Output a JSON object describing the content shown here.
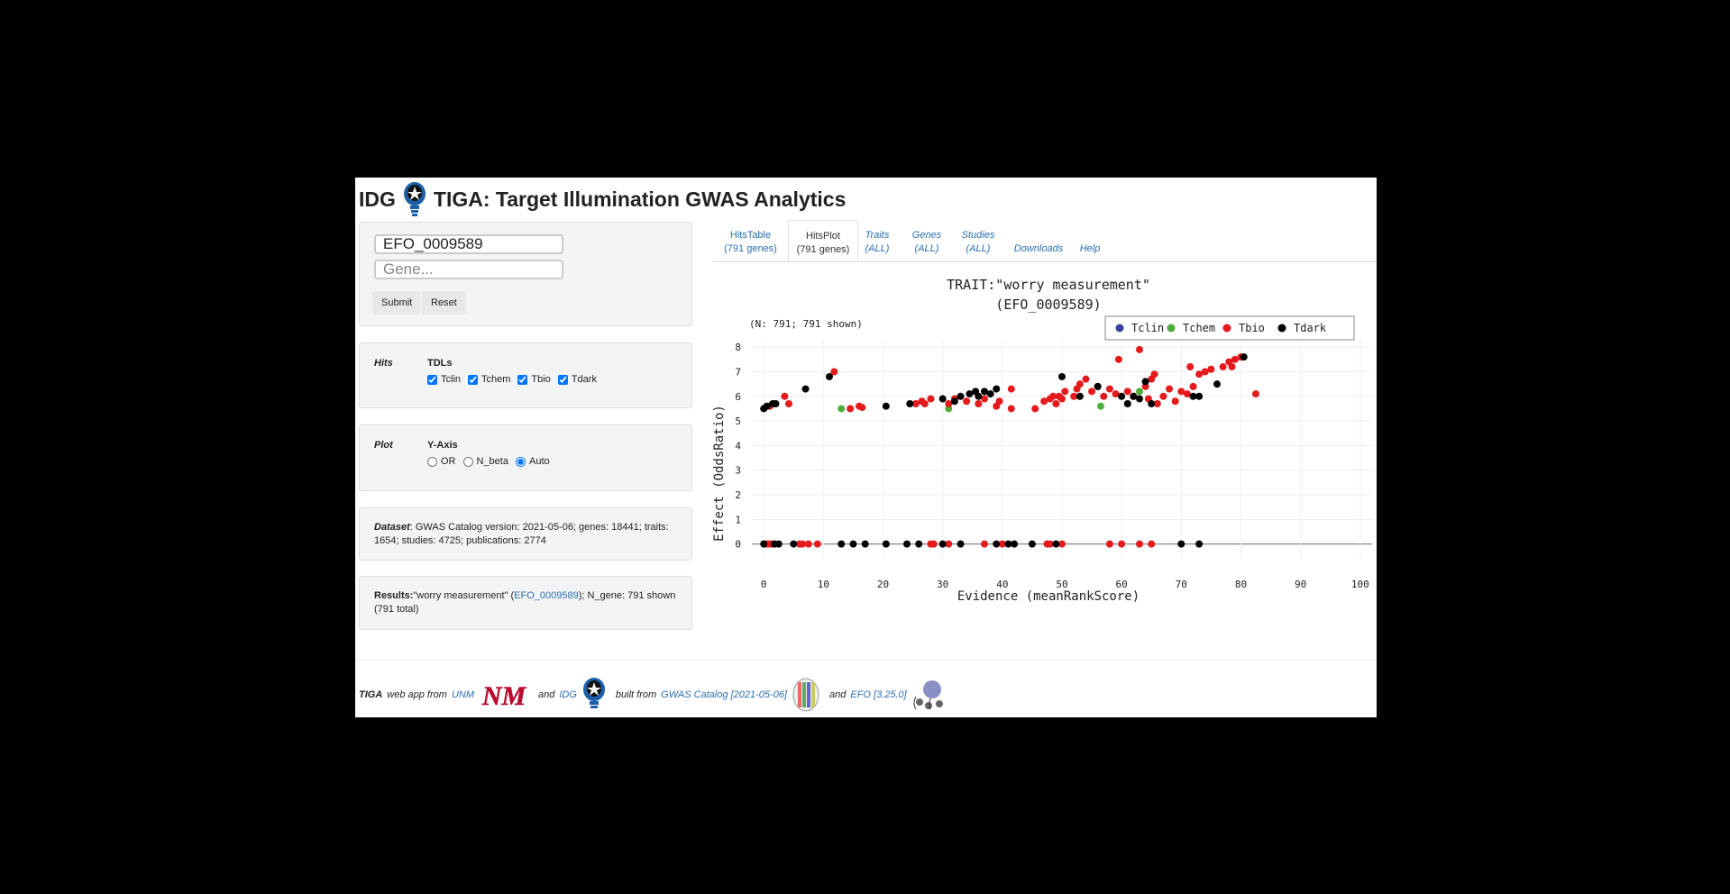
{
  "header": {
    "prefix": "IDG",
    "title": "TIGA: Target Illumination GWAS Analytics"
  },
  "search": {
    "trait_value": "EFO_0009589",
    "gene_placeholder": "Gene...",
    "submit_label": "Submit",
    "reset_label": "Reset"
  },
  "hits_panel": {
    "label": "Hits",
    "heading": "TDLs",
    "options": [
      {
        "label": "Tclin",
        "checked": true
      },
      {
        "label": "Tchem",
        "checked": true
      },
      {
        "label": "Tbio",
        "checked": true
      },
      {
        "label": "Tdark",
        "checked": true
      }
    ]
  },
  "plot_panel": {
    "label": "Plot",
    "heading": "Y-Axis",
    "options": [
      {
        "label": "OR",
        "checked": false
      },
      {
        "label": "N_beta",
        "checked": false
      },
      {
        "label": "Auto",
        "checked": true
      }
    ]
  },
  "dataset": {
    "label": "Dataset",
    "text": ": GWAS Catalog version: 2021-05-06; genes: 18441; traits: 1654; studies: 4725; publications: 2774"
  },
  "results": {
    "label": "Results:",
    "text_a": "\"worry measurement\" (",
    "link": "EFO_0009589",
    "text_b": "); N_gene: 791 shown (791 total)"
  },
  "tabs": [
    {
      "line1": "HitsTable",
      "line2": "(791 genes)",
      "active": false,
      "italic": false
    },
    {
      "line1": "HitsPlot",
      "line2": "(791 genes)",
      "active": true,
      "italic": false
    },
    {
      "line1": "Traits",
      "line2": "(ALL)",
      "active": false,
      "italic": true
    },
    {
      "line1": "Genes",
      "line2": "(ALL)",
      "active": false,
      "italic": true
    },
    {
      "line1": "Studies",
      "line2": "(ALL)",
      "active": false,
      "italic": true
    },
    {
      "line1": "Downloads",
      "line2": "",
      "active": false,
      "italic": true
    },
    {
      "line1": "Help",
      "line2": "",
      "active": false,
      "italic": true
    }
  ],
  "footer": {
    "app": "TIGA",
    "text1": "web app from",
    "link1": "UNM",
    "and1": "and",
    "link2": "IDG",
    "text2": "built from",
    "link3": "GWAS Catalog [2021-05-06]",
    "and2": "and",
    "link4": "EFO [3.25.0]",
    "unm_logo_text": "NM"
  },
  "colors": {
    "Tclin": "#3a3f9b",
    "Tchem": "#4fae3a",
    "Tbio": "#e41a1c",
    "Tdark": "#000000",
    "link": "#2a6fb0"
  },
  "chart_data": {
    "type": "scatter",
    "title_line1": "TRAIT:\"worry measurement\"",
    "title_line2": "(EFO_0009589)",
    "subtitle": "(N: 791; 791 shown)",
    "xlabel": "Evidence (meanRankScore)",
    "ylabel": "Effect (OddsRatio)",
    "xlim": [
      -2,
      102
    ],
    "ylim": [
      -0.6,
      8.3
    ],
    "xticks": [
      0,
      10,
      20,
      30,
      40,
      50,
      60,
      70,
      80,
      90,
      100
    ],
    "yticks": [
      0,
      1,
      2,
      3,
      4,
      5,
      6,
      7,
      8
    ],
    "grid": true,
    "legend_position": "top-right",
    "series": [
      {
        "name": "Tclin",
        "color": "#3a3f9b",
        "points": []
      },
      {
        "name": "Tchem",
        "color": "#4fae3a",
        "points": [
          [
            13,
            5.5
          ],
          [
            31,
            5.5
          ],
          [
            56.5,
            5.6
          ],
          [
            63,
            6.2
          ]
        ]
      },
      {
        "name": "Tbio",
        "color": "#e41a1c",
        "points": [
          [
            1,
            5.6
          ],
          [
            3.5,
            6.0
          ],
          [
            4.2,
            5.7
          ],
          [
            11.8,
            7.0
          ],
          [
            14.5,
            5.5
          ],
          [
            16,
            5.6
          ],
          [
            16.5,
            5.55
          ],
          [
            25.5,
            5.7
          ],
          [
            26.5,
            5.8
          ],
          [
            27,
            5.7
          ],
          [
            28,
            5.9
          ],
          [
            31,
            5.7
          ],
          [
            32,
            5.9
          ],
          [
            34,
            5.8
          ],
          [
            36,
            5.7
          ],
          [
            37,
            5.9
          ],
          [
            39,
            5.6
          ],
          [
            39.5,
            5.8
          ],
          [
            41.5,
            6.3
          ],
          [
            41.5,
            5.5
          ],
          [
            45.5,
            5.5
          ],
          [
            47,
            5.8
          ],
          [
            48,
            5.9
          ],
          [
            48.5,
            6.0
          ],
          [
            49,
            5.7
          ],
          [
            49.5,
            6.0
          ],
          [
            50,
            5.9
          ],
          [
            50.5,
            6.2
          ],
          [
            52,
            6.0
          ],
          [
            52.5,
            6.3
          ],
          [
            53,
            6.5
          ],
          [
            54,
            6.7
          ],
          [
            55,
            6.2
          ],
          [
            56,
            6.4
          ],
          [
            57,
            6.0
          ],
          [
            58,
            6.3
          ],
          [
            59,
            6.1
          ],
          [
            59.5,
            7.5
          ],
          [
            61,
            6.2
          ],
          [
            62,
            6.0
          ],
          [
            63,
            7.9
          ],
          [
            64,
            6.4
          ],
          [
            64.5,
            5.9
          ],
          [
            65,
            6.7
          ],
          [
            65.5,
            6.9
          ],
          [
            66,
            5.7
          ],
          [
            67,
            6.0
          ],
          [
            68,
            6.3
          ],
          [
            69,
            5.8
          ],
          [
            70,
            6.2
          ],
          [
            71,
            6.1
          ],
          [
            71.5,
            7.2
          ],
          [
            72,
            6.4
          ],
          [
            73,
            6.9
          ],
          [
            74,
            7.0
          ],
          [
            75,
            7.1
          ],
          [
            77,
            7.2
          ],
          [
            78,
            7.4
          ],
          [
            78.5,
            7.2
          ],
          [
            79,
            7.5
          ],
          [
            80,
            7.6
          ],
          [
            82.5,
            6.1
          ],
          [
            0.5,
            0
          ],
          [
            1,
            0
          ],
          [
            1.5,
            0
          ],
          [
            6,
            0
          ],
          [
            6.5,
            0
          ],
          [
            7.5,
            0
          ],
          [
            9,
            0
          ],
          [
            28,
            0
          ],
          [
            28.5,
            0
          ],
          [
            31,
            0
          ],
          [
            37,
            0
          ],
          [
            40,
            0
          ],
          [
            47.5,
            0
          ],
          [
            48,
            0
          ],
          [
            50,
            0
          ],
          [
            58,
            0
          ],
          [
            60,
            0
          ],
          [
            63,
            0
          ],
          [
            65,
            0
          ]
        ]
      },
      {
        "name": "Tdark",
        "color": "#000000",
        "points": [
          [
            0,
            5.5
          ],
          [
            0.5,
            5.6
          ],
          [
            1.5,
            5.7
          ],
          [
            2,
            5.7
          ],
          [
            7,
            6.3
          ],
          [
            11,
            6.8
          ],
          [
            20.5,
            5.6
          ],
          [
            24.5,
            5.7
          ],
          [
            30,
            5.9
          ],
          [
            32,
            5.8
          ],
          [
            33,
            6.0
          ],
          [
            34.5,
            6.1
          ],
          [
            35.5,
            6.2
          ],
          [
            36,
            6.0
          ],
          [
            37,
            6.2
          ],
          [
            38,
            6.1
          ],
          [
            39,
            6.3
          ],
          [
            50,
            6.8
          ],
          [
            53,
            6.0
          ],
          [
            56,
            6.4
          ],
          [
            60,
            6.0
          ],
          [
            61,
            5.7
          ],
          [
            62,
            6.0
          ],
          [
            63,
            5.9
          ],
          [
            64,
            6.6
          ],
          [
            65,
            5.7
          ],
          [
            72,
            6.0
          ],
          [
            73,
            6.0
          ],
          [
            76,
            6.5
          ],
          [
            80.5,
            7.6
          ],
          [
            0,
            0
          ],
          [
            1.8,
            0
          ],
          [
            2.5,
            0
          ],
          [
            5,
            0
          ],
          [
            13,
            0
          ],
          [
            15,
            0
          ],
          [
            17,
            0
          ],
          [
            20.5,
            0
          ],
          [
            24,
            0
          ],
          [
            26,
            0
          ],
          [
            30,
            0
          ],
          [
            33,
            0
          ],
          [
            39,
            0
          ],
          [
            41,
            0
          ],
          [
            42,
            0
          ],
          [
            45,
            0
          ],
          [
            49,
            0
          ],
          [
            70,
            0
          ],
          [
            73,
            0
          ]
        ]
      }
    ]
  }
}
